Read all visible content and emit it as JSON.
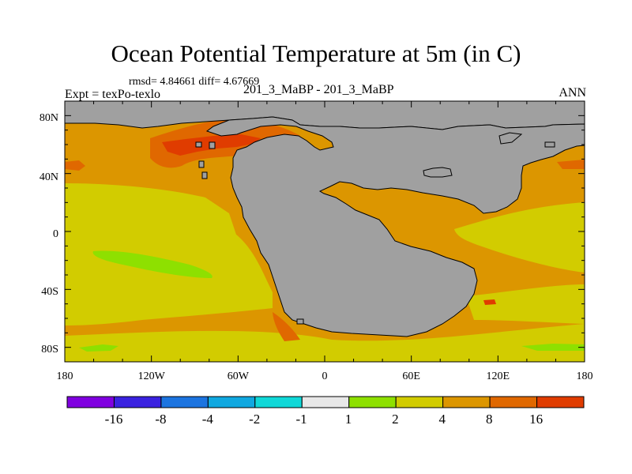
{
  "map": {
    "title": "Ocean Potential Temperature at 5m (in C)",
    "stats": "rmsd= 4.84661 diff= 4.67669",
    "left_label": "Expt = texPo-texlo",
    "center_label": "201_3_MaBP - 201_3_MaBP",
    "right_label": "ANN",
    "x_ticks": [
      "180",
      "120W",
      "60W",
      "0",
      "60E",
      "120E",
      "180"
    ],
    "y_ticks": [
      "80N",
      "40N",
      "0",
      "40S",
      "80S"
    ],
    "colors": {
      "land": "#a0a0a0",
      "coast": "#000000",
      "c1_2": "#8ee000",
      "c2_4": "#d2cc00",
      "c4_8": "#dc9600",
      "c8_16": "#e06800",
      "c16p": "#e03c00"
    }
  },
  "colorbar": {
    "colors": [
      "#8000e0",
      "#3a22e0",
      "#1c74e0",
      "#10a8e0",
      "#10d8d8",
      "#e8e8e8",
      "#8ee000",
      "#d2cc00",
      "#dc9600",
      "#e06800",
      "#e03c00"
    ],
    "labels": [
      "-16",
      "-8",
      "-4",
      "-2",
      "-1",
      "1",
      "2",
      "4",
      "8",
      "16"
    ]
  }
}
